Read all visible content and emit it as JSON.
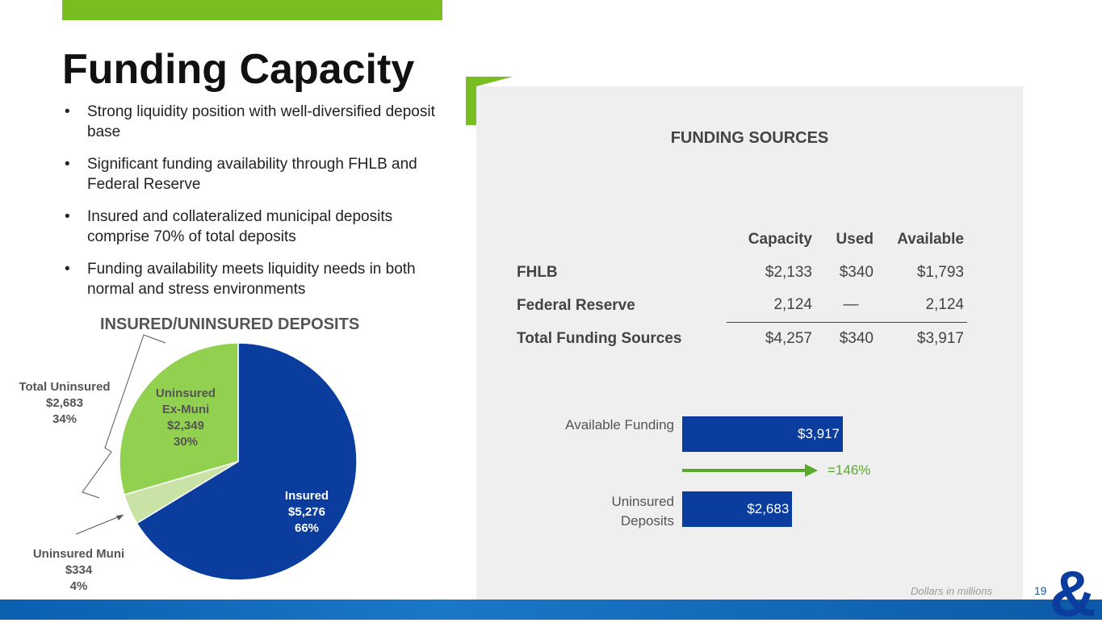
{
  "title": "Funding Capacity",
  "bullets": [
    "Strong liquidity position with well-diversified deposit base",
    "Significant funding availability through FHLB and Federal Reserve",
    "Insured and collateralized municipal deposits comprise 70% of total deposits",
    "Funding availability meets liquidity needs in both normal and stress environments"
  ],
  "colors": {
    "accent_green": "#78be20",
    "navy": "#0a3d9e",
    "light_green": "#92d050"
  },
  "chart_data": [
    {
      "type": "pie",
      "title": "INSURED/UNINSURED DEPOSITS",
      "slices": [
        {
          "name": "Insured",
          "value": 5276,
          "value_label": "$5,276",
          "pct": "66%",
          "color": "#0a3d9e"
        },
        {
          "name": "Uninsured Muni",
          "value": 334,
          "value_label": "$334",
          "pct": "4%",
          "color": "#c9e3a6"
        },
        {
          "name": "Uninsured Ex-Muni",
          "value": 2349,
          "value_label": "$2,349",
          "pct": "30%",
          "color": "#92d050"
        }
      ],
      "annotation": {
        "label": "Total Uninsured",
        "value": "$2,683",
        "pct": "34%"
      }
    },
    {
      "type": "table",
      "title": "FUNDING SOURCES",
      "columns": [
        "",
        "Capacity",
        "Used",
        "Available"
      ],
      "rows": [
        [
          "FHLB",
          "$2,133",
          "$340",
          "$1,793"
        ],
        [
          "Federal Reserve",
          "2,124",
          "—",
          "2,124"
        ],
        [
          "Total Funding Sources",
          "$4,257",
          "$340",
          "$3,917"
        ]
      ]
    },
    {
      "type": "bar",
      "categories": [
        "Available Funding",
        "Uninsured Deposits"
      ],
      "values": [
        3917,
        2683
      ],
      "labels": [
        "$3,917",
        "$2,683"
      ],
      "annotation": "=146%"
    }
  ],
  "footer": {
    "note": "Dollars in millions",
    "page": "19"
  }
}
